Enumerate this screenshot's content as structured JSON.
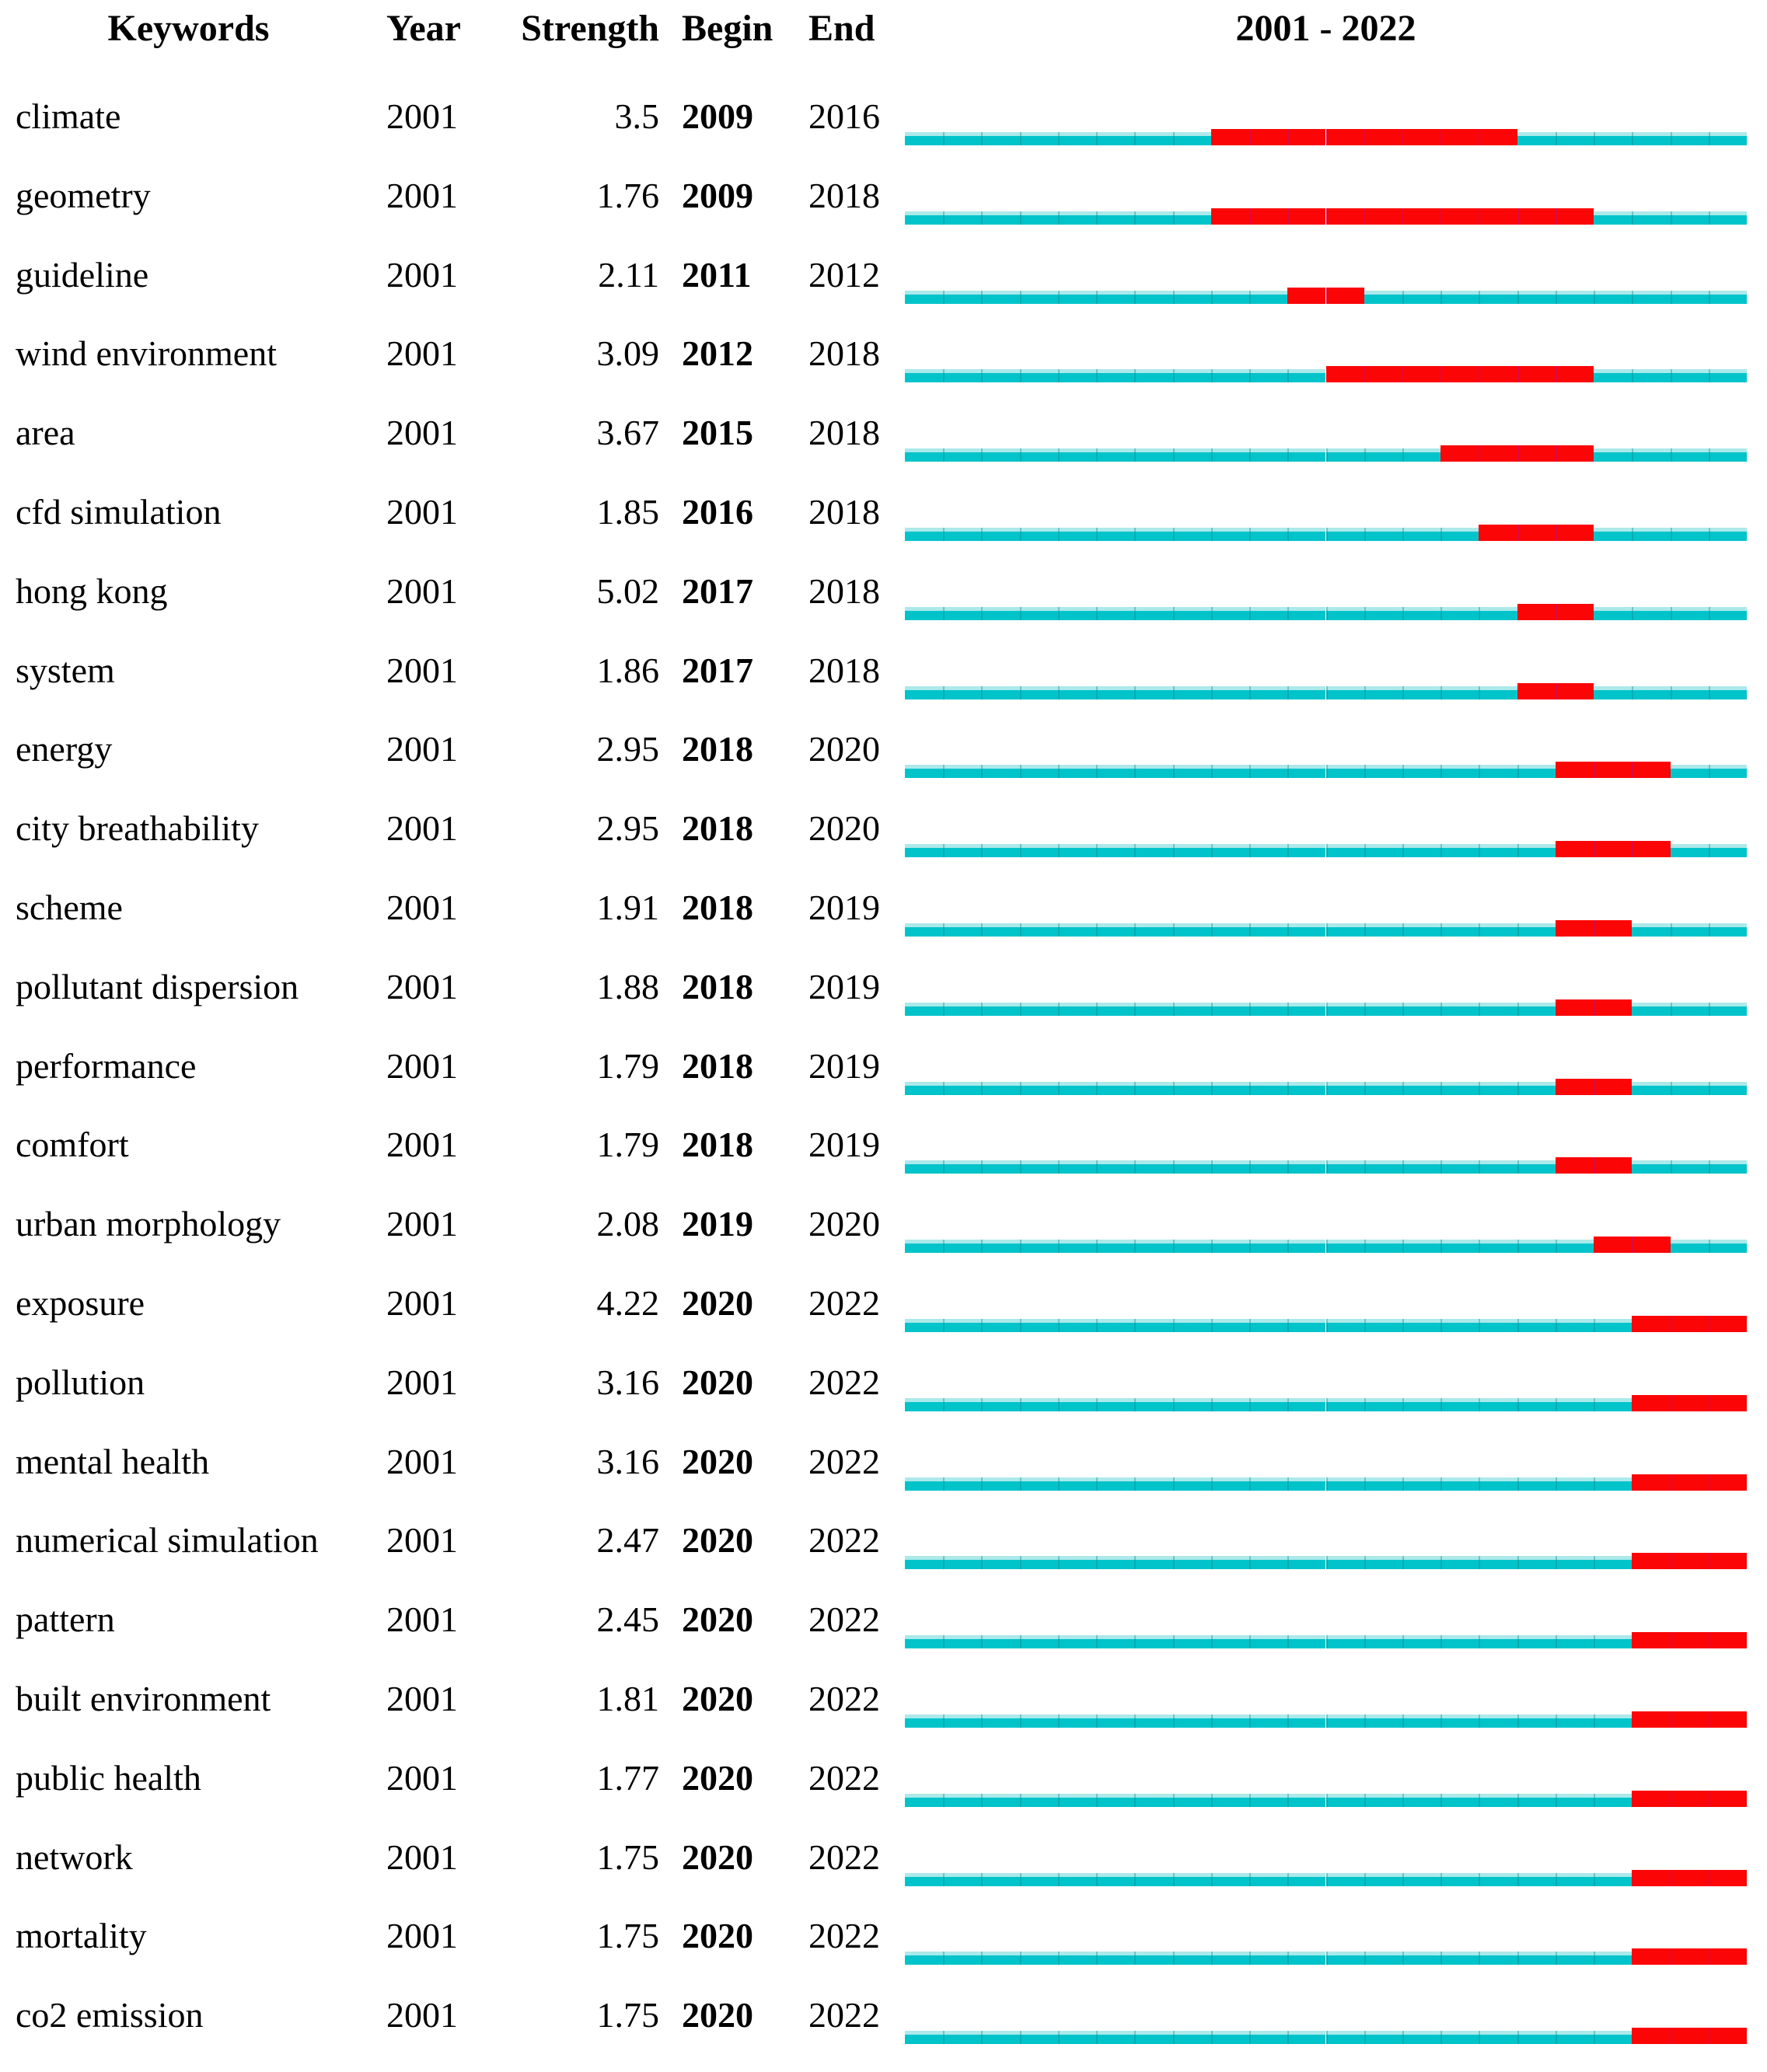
{
  "header": {
    "columns": {
      "keywords": "Keywords",
      "year": "Year",
      "strength": "Strength",
      "begin": "Begin",
      "end": "End"
    },
    "timeline_title": "2001 - 2022"
  },
  "chart_data": {
    "type": "table",
    "title": "2001 - 2022",
    "columns": [
      "Keywords",
      "Year",
      "Strength",
      "Begin",
      "End"
    ],
    "timeline": {
      "start_year": 2001,
      "end_year": 2022,
      "label": "2001 - 2022",
      "track_style": "full-span cyan line per row",
      "burst_style": "red segment from Begin year to End year inclusive"
    },
    "colors": {
      "track": "#00c4ca",
      "track_light": "#ace9ea",
      "track_divider": "rgba(0,125,132,0.35)",
      "burst": "#fb0507",
      "burst_divider": "rgba(215,10,75,0.85)",
      "text": "#000000"
    },
    "rows": [
      {
        "keyword": "climate",
        "year": "2001",
        "strength": "3.5",
        "begin": 2009,
        "end": 2016
      },
      {
        "keyword": "geometry",
        "year": "2001",
        "strength": "1.76",
        "begin": 2009,
        "end": 2018
      },
      {
        "keyword": "guideline",
        "year": "2001",
        "strength": "2.11",
        "begin": 2011,
        "end": 2012
      },
      {
        "keyword": "wind environment",
        "year": "2001",
        "strength": "3.09",
        "begin": 2012,
        "end": 2018
      },
      {
        "keyword": "area",
        "year": "2001",
        "strength": "3.67",
        "begin": 2015,
        "end": 2018
      },
      {
        "keyword": "cfd simulation",
        "year": "2001",
        "strength": "1.85",
        "begin": 2016,
        "end": 2018
      },
      {
        "keyword": "hong kong",
        "year": "2001",
        "strength": "5.02",
        "begin": 2017,
        "end": 2018
      },
      {
        "keyword": "system",
        "year": "2001",
        "strength": "1.86",
        "begin": 2017,
        "end": 2018
      },
      {
        "keyword": "energy",
        "year": "2001",
        "strength": "2.95",
        "begin": 2018,
        "end": 2020
      },
      {
        "keyword": "city breathability",
        "year": "2001",
        "strength": "2.95",
        "begin": 2018,
        "end": 2020
      },
      {
        "keyword": "scheme",
        "year": "2001",
        "strength": "1.91",
        "begin": 2018,
        "end": 2019
      },
      {
        "keyword": "pollutant dispersion",
        "year": "2001",
        "strength": "1.88",
        "begin": 2018,
        "end": 2019
      },
      {
        "keyword": "performance",
        "year": "2001",
        "strength": "1.79",
        "begin": 2018,
        "end": 2019
      },
      {
        "keyword": "comfort",
        "year": "2001",
        "strength": "1.79",
        "begin": 2018,
        "end": 2019
      },
      {
        "keyword": "urban morphology",
        "year": "2001",
        "strength": "2.08",
        "begin": 2019,
        "end": 2020
      },
      {
        "keyword": "exposure",
        "year": "2001",
        "strength": "4.22",
        "begin": 2020,
        "end": 2022
      },
      {
        "keyword": "pollution",
        "year": "2001",
        "strength": "3.16",
        "begin": 2020,
        "end": 2022
      },
      {
        "keyword": "mental health",
        "year": "2001",
        "strength": "3.16",
        "begin": 2020,
        "end": 2022
      },
      {
        "keyword": "numerical simulation",
        "year": "2001",
        "strength": "2.47",
        "begin": 2020,
        "end": 2022
      },
      {
        "keyword": "pattern",
        "year": "2001",
        "strength": "2.45",
        "begin": 2020,
        "end": 2022
      },
      {
        "keyword": "built environment",
        "year": "2001",
        "strength": "1.81",
        "begin": 2020,
        "end": 2022
      },
      {
        "keyword": "public health",
        "year": "2001",
        "strength": "1.77",
        "begin": 2020,
        "end": 2022
      },
      {
        "keyword": "network",
        "year": "2001",
        "strength": "1.75",
        "begin": 2020,
        "end": 2022
      },
      {
        "keyword": "mortality",
        "year": "2001",
        "strength": "1.75",
        "begin": 2020,
        "end": 2022
      },
      {
        "keyword": "co2 emission",
        "year": "2001",
        "strength": "1.75",
        "begin": 2020,
        "end": 2022
      }
    ]
  }
}
